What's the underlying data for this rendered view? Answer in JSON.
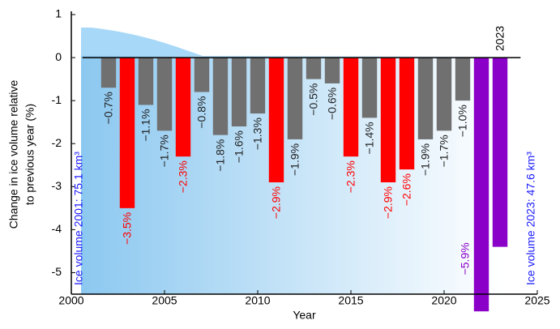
{
  "chart_data": {
    "type": "bar",
    "x_label": "Year",
    "y_label": [
      "Change in ice volume relative",
      "to previous year (%)"
    ],
    "annotations": [
      "Ice volume 2001: 75.1 km³",
      "Ice volume 2023: 47.6 km³",
      "2023"
    ],
    "x": [
      2002,
      2003,
      2004,
      2005,
      2006,
      2007,
      2008,
      2009,
      2010,
      2011,
      2012,
      2013,
      2014,
      2015,
      2016,
      2017,
      2018,
      2019,
      2020,
      2021,
      2022,
      2023
    ],
    "values": [
      -0.7,
      -3.5,
      -1.1,
      -1.7,
      -2.3,
      -0.8,
      -1.8,
      -1.6,
      -1.3,
      -2.9,
      -1.9,
      -0.5,
      -0.6,
      -2.3,
      -1.4,
      -2.9,
      -2.6,
      -1.9,
      -1.7,
      -1.0,
      -5.9,
      -4.4
    ],
    "value_labels": [
      "−0.7%",
      "−3.5%",
      "−1.1%",
      "−1.7%",
      "−2.3%",
      "−0.8%",
      "−1.8%",
      "−1.6%",
      "−1.3%",
      "−2.9%",
      "−1.9%",
      "−0.5%",
      "−0.6%",
      "−2.3%",
      "−1.4%",
      "−2.9%",
      "−2.6%",
      "−1.9%",
      "−1.7%",
      "−1.0%",
      "−5.9%",
      "−4.4%"
    ],
    "colors": [
      "#707070",
      "#ff0000",
      "#707070",
      "#707070",
      "#ff0000",
      "#707070",
      "#707070",
      "#707070",
      "#707070",
      "#ff0000",
      "#707070",
      "#707070",
      "#707070",
      "#ff0000",
      "#707070",
      "#ff0000",
      "#ff0000",
      "#707070",
      "#707070",
      "#707070",
      "#8a00c8",
      "#8a00c8"
    ],
    "xlim": [
      2000,
      2025
    ],
    "xticks": [
      2000,
      2005,
      2010,
      2015,
      2020,
      2025
    ],
    "ylim": [
      -5.5,
      1
    ],
    "yticks": [
      1,
      0,
      -1,
      -2,
      -3,
      -4,
      -5
    ]
  }
}
